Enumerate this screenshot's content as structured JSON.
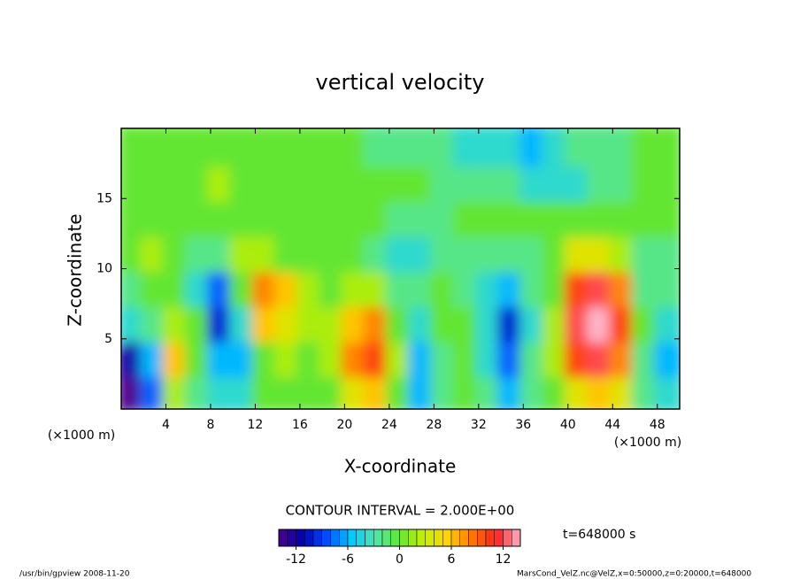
{
  "chart_data": {
    "type": "heatmap",
    "title": "vertical velocity",
    "xlabel": "X-coordinate",
    "ylabel": "Z-coordinate",
    "x_unit": "(×1000 m)",
    "y_unit": "(×1000 m)",
    "contour_note": "CONTOUR INTERVAL = 2.000E+00",
    "time_label": "t=648000 s",
    "footer_left": "/usr/bin/gpview  2008-11-20",
    "footer_right": "MarsCond_VelZ.nc@VelZ,x=0:50000,z=0:20000,t=648000",
    "x": [
      1,
      3,
      5,
      7,
      9,
      11,
      13,
      15,
      17,
      19,
      21,
      23,
      25,
      27,
      29,
      31,
      33,
      35,
      37,
      39,
      41,
      43,
      45,
      47,
      49
    ],
    "y": [
      1.25,
      3.75,
      6.25,
      8.75,
      11.25,
      13.75,
      16.25,
      18.75
    ],
    "values": [
      [
        -14,
        -8,
        2,
        -2,
        -4,
        -4,
        0,
        0,
        0,
        0,
        4,
        6,
        0,
        -6,
        -2,
        0,
        -2,
        -6,
        -2,
        0,
        4,
        6,
        4,
        -2,
        -4
      ],
      [
        -12,
        -6,
        6,
        0,
        -6,
        -6,
        0,
        2,
        0,
        2,
        8,
        10,
        2,
        -6,
        -2,
        0,
        -4,
        -8,
        -2,
        2,
        10,
        12,
        8,
        -2,
        -6
      ],
      [
        -4,
        -2,
        2,
        0,
        -10,
        -4,
        6,
        4,
        2,
        2,
        6,
        8,
        0,
        -4,
        0,
        0,
        -4,
        -10,
        -4,
        2,
        12,
        14,
        10,
        0,
        -4
      ],
      [
        -2,
        0,
        0,
        -4,
        -8,
        0,
        8,
        6,
        2,
        0,
        2,
        2,
        -2,
        -2,
        0,
        -2,
        -4,
        -6,
        -2,
        0,
        10,
        12,
        8,
        -2,
        -2
      ],
      [
        0,
        2,
        0,
        -2,
        -2,
        2,
        2,
        0,
        0,
        0,
        0,
        -2,
        -4,
        -4,
        -2,
        -2,
        -2,
        -2,
        -2,
        0,
        4,
        4,
        2,
        -2,
        -2
      ],
      [
        0,
        0,
        0,
        0,
        0,
        0,
        0,
        0,
        0,
        0,
        0,
        0,
        -2,
        -2,
        -2,
        0,
        0,
        0,
        0,
        0,
        0,
        0,
        0,
        0,
        0
      ],
      [
        0,
        0,
        0,
        0,
        2,
        0,
        0,
        0,
        0,
        0,
        0,
        0,
        0,
        0,
        -2,
        -2,
        -2,
        -2,
        -4,
        -4,
        -4,
        -2,
        -2,
        0,
        0
      ],
      [
        0,
        0,
        0,
        0,
        0,
        0,
        0,
        0,
        0,
        0,
        0,
        -2,
        -2,
        -2,
        -2,
        -4,
        -4,
        -4,
        -6,
        -4,
        -2,
        -2,
        -2,
        0,
        0
      ]
    ],
    "xlim": [
      0,
      50
    ],
    "ylim": [
      0,
      20
    ],
    "xticks": [
      4,
      8,
      12,
      16,
      20,
      24,
      28,
      32,
      36,
      40,
      44,
      48
    ],
    "yticks": [
      5,
      10,
      15
    ],
    "clim": [
      -14,
      14
    ],
    "cticks": [
      -12,
      -6,
      0,
      6,
      12
    ],
    "colormap": [
      "#50008c",
      "#0000b4",
      "#0050ff",
      "#00c8ff",
      "#50e6aa",
      "#64e632",
      "#c8f000",
      "#ffd200",
      "#ff7800",
      "#ff1e1e",
      "#ffb4c8"
    ]
  }
}
